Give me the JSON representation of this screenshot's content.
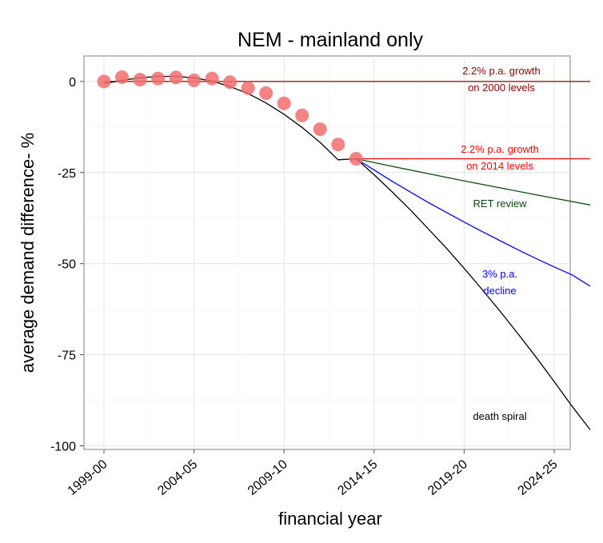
{
  "chart_data": {
    "type": "line",
    "title": "NEM - mainland only",
    "xlabel": "financial year",
    "ylabel": "average demand difference- %",
    "xlim": [
      1999,
      2026
    ],
    "ylim": [
      -101,
      7
    ],
    "x_ticks": [
      {
        "value": 1999,
        "label": "1999-00"
      },
      {
        "value": 2004,
        "label": "2004-05"
      },
      {
        "value": 2009,
        "label": "2009-10"
      },
      {
        "value": 2014,
        "label": "2014-15"
      },
      {
        "value": 2019,
        "label": "2019-20"
      },
      {
        "value": 2024,
        "label": "2024-25"
      }
    ],
    "y_ticks": [
      {
        "value": 0,
        "label": "0"
      },
      {
        "value": -25,
        "label": "-25"
      },
      {
        "value": -50,
        "label": "-50"
      },
      {
        "value": -75,
        "label": "-75"
      },
      {
        "value": -100,
        "label": "-100"
      }
    ],
    "grid": true,
    "observed": {
      "color": "#f26d6d",
      "x": [
        1999,
        2000,
        2001,
        2002,
        2003,
        2004,
        2005,
        2006,
        2007,
        2008,
        2009,
        2010,
        2011,
        2012,
        2013
      ],
      "y": [
        0,
        1.2,
        0.5,
        0.8,
        1.1,
        0.3,
        0.8,
        -0.2,
        -1.8,
        -3.2,
        -6.0,
        -9.3,
        -13.1,
        -17.3,
        -21.2
      ]
    },
    "fit": {
      "color": "#000000",
      "x": [
        1999,
        2000,
        2001,
        2002,
        2003,
        2004,
        2005,
        2006,
        2007,
        2008,
        2009,
        2010,
        2011,
        2012,
        2013
      ],
      "y": [
        -0.6,
        0.3,
        1.0,
        1.4,
        1.4,
        1.0,
        0.1,
        -1.4,
        -3.3,
        -5.9,
        -9.0,
        -12.6,
        -16.7,
        -21.5,
        -21.2
      ]
    },
    "series": [
      {
        "name": "2.2% p.a. growth on 2000 levels",
        "label_lines": [
          "2.2% p.a. growth",
          "on 2000 levels"
        ],
        "color": "#8b0000",
        "x": [
          1999,
          2026
        ],
        "y": [
          0,
          0
        ]
      },
      {
        "name": "2.2% p.a. growth on 2014 levels",
        "label_lines": [
          "2.2% p.a. growth",
          "on 2014 levels"
        ],
        "color": "#ff0000",
        "x": [
          2013,
          2026
        ],
        "y": [
          -21.2,
          -21.2
        ]
      },
      {
        "name": "RET review",
        "label_lines": [
          "RET review"
        ],
        "color": "#0b4d0b",
        "x": [
          2013,
          2015,
          2017,
          2019,
          2021,
          2023,
          2026
        ],
        "y": [
          -21.2,
          -23.3,
          -25.3,
          -27.3,
          -29.2,
          -31.1,
          -33.9
        ]
      },
      {
        "name": "3% p.a. decline",
        "label_lines": [
          "3% p.a.",
          "decline"
        ],
        "color": "#0000ff",
        "x": [
          2013,
          2014,
          2015,
          2016,
          2017,
          2018,
          2019,
          2020,
          2021,
          2022,
          2023,
          2024,
          2025,
          2026
        ],
        "y": [
          -21.2,
          -24.3,
          -27.4,
          -30.3,
          -33.2,
          -35.9,
          -38.6,
          -41.2,
          -43.7,
          -46.2,
          -48.6,
          -50.9,
          -53.1,
          -56.2
        ]
      },
      {
        "name": "death spiral",
        "label_lines": [
          "death spiral"
        ],
        "color": "#000000",
        "x": [
          2013,
          2014,
          2015,
          2016,
          2017,
          2018,
          2019,
          2020,
          2021,
          2022,
          2023,
          2024,
          2025,
          2026
        ],
        "y": [
          -21.2,
          -25.6,
          -30.3,
          -35.2,
          -40.4,
          -45.7,
          -51.3,
          -57.1,
          -63.1,
          -69.3,
          -75.7,
          -82.4,
          -89.2,
          -95.6
        ]
      }
    ]
  }
}
